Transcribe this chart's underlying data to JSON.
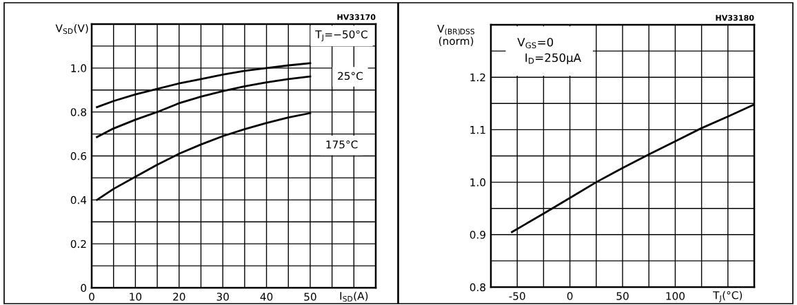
{
  "chart_data": [
    {
      "type": "line",
      "xlabel": "I$_{SD}$(A)",
      "ylabel": "V$_{SD}$(V)",
      "xlim": [
        0,
        65
      ],
      "ylim": [
        0,
        1.2
      ],
      "xticks": [
        0,
        {
          "value": 5,
          "label": null
        },
        10,
        {
          "value": 15,
          "label": null
        },
        20,
        {
          "value": 25,
          "label": null
        },
        30,
        {
          "value": 35,
          "label": null
        },
        40,
        {
          "value": 45,
          "label": null
        },
        50,
        {
          "value": 55,
          "label": null
        },
        {
          "value": 60,
          "label": null
        }
      ],
      "yticks": [
        {
          "value": 0,
          "label": "0"
        },
        {
          "value": 0.1,
          "label": null
        },
        0.2,
        {
          "value": 0.3,
          "label": null
        },
        0.4,
        {
          "value": 0.5,
          "label": null
        },
        0.6,
        {
          "value": 0.7,
          "label": null
        },
        0.8,
        {
          "value": 0.9,
          "label": null
        },
        {
          "value": 1.0,
          "label": "1.0"
        },
        {
          "value": 1.1,
          "label": null
        },
        {
          "value": 1.2,
          "label": null
        }
      ],
      "grid": true,
      "legend": false,
      "marker": "none",
      "line_style": "solid",
      "series": [
        {
          "color": "#000000",
          "x": [
            1.2,
            5,
            10,
            15,
            20,
            25,
            30,
            35,
            40,
            45,
            50
          ],
          "values": [
            0.822,
            0.85,
            0.88,
            0.905,
            0.93,
            0.95,
            0.97,
            0.987,
            1.0,
            1.012,
            1.022
          ]
        },
        {
          "color": "#000000",
          "x": [
            1.2,
            5,
            10,
            15,
            20,
            25,
            30,
            35,
            40,
            45,
            50
          ],
          "values": [
            0.686,
            0.725,
            0.765,
            0.8,
            0.84,
            0.87,
            0.895,
            0.917,
            0.935,
            0.95,
            0.962
          ]
        },
        {
          "color": "#000000",
          "x": [
            1.2,
            5,
            10,
            15,
            20,
            25,
            30,
            35,
            40,
            45,
            50
          ],
          "values": [
            0.4,
            0.45,
            0.505,
            0.56,
            0.61,
            0.652,
            0.69,
            0.722,
            0.75,
            0.775,
            0.795
          ]
        }
      ],
      "annotations": [
        "T$_{J}$=−50°C",
        "25°C",
        "175°C",
        "HV33170"
      ]
    },
    {
      "type": "line",
      "xlabel": "T$_{J}$(°C)",
      "ylabel": "V$_{(BR)DSS}$\n(norm)",
      "xlim": [
        -75,
        175
      ],
      "ylim": [
        0.8,
        1.3
      ],
      "xticks": [
        -50,
        {
          "value": -25,
          "label": null
        },
        0,
        {
          "value": 25,
          "label": null
        },
        50,
        {
          "value": 75,
          "label": null
        },
        100,
        {
          "value": 125,
          "label": null
        },
        {
          "value": 150,
          "label": null
        }
      ],
      "yticks": [
        0.8,
        {
          "value": 0.85,
          "label": null
        },
        0.9,
        {
          "value": 0.95,
          "label": null
        },
        {
          "value": 1.0,
          "label": "1.0"
        },
        {
          "value": 1.05,
          "label": null
        },
        1.1,
        {
          "value": 1.15,
          "label": null
        },
        1.2,
        {
          "value": 1.25,
          "label": null
        },
        {
          "value": 1.3,
          "label": null
        }
      ],
      "grid": true,
      "legend": false,
      "marker": "none",
      "line_style": "solid",
      "series": [
        {
          "color": "#000000",
          "x": [
            -55,
            -25,
            0,
            25,
            50,
            75,
            100,
            125,
            150,
            175
          ],
          "values": [
            0.905,
            0.94,
            0.97,
            1.0,
            1.027,
            1.053,
            1.078,
            1.103,
            1.125,
            1.148
          ]
        }
      ],
      "annotations": [
        "V$_{GS}$=0\n  I$_{D}$=250μA",
        "HV33180"
      ]
    }
  ]
}
